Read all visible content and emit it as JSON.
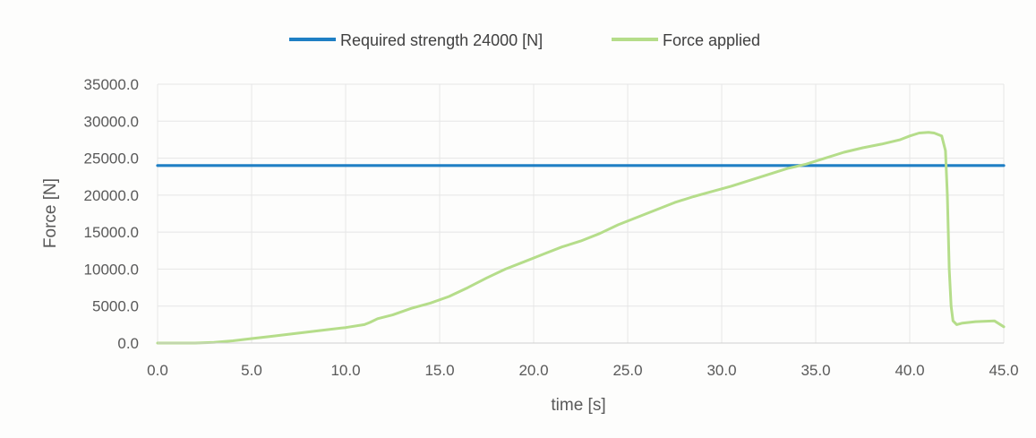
{
  "chart_data": {
    "type": "line",
    "title": "",
    "xlabel": "time [s]",
    "ylabel": "Force [N]",
    "xlim": [
      0,
      45
    ],
    "ylim": [
      0,
      35000
    ],
    "xticks": [
      "0.0",
      "5.0",
      "10.0",
      "15.0",
      "20.0",
      "25.0",
      "30.0",
      "35.0",
      "40.0",
      "45.0"
    ],
    "yticks": [
      "0.0",
      "5000.0",
      "10000.0",
      "15000.0",
      "20000.0",
      "25000.0",
      "30000.0",
      "35000.0"
    ],
    "grid": true,
    "legend_position": "top-center",
    "series": [
      {
        "name": "Required strength 24000 [N]",
        "color": "#1f7fc4",
        "x": [
          0,
          45
        ],
        "y": [
          24000,
          24000
        ]
      },
      {
        "name": "Force applied",
        "color": "#b5dd8a",
        "x": [
          0,
          2,
          3,
          4,
          5,
          6,
          7,
          8,
          9,
          10,
          11,
          11.3,
          11.7,
          12.5,
          13.5,
          14.5,
          15.5,
          16.5,
          17.5,
          18.5,
          19.5,
          20.5,
          21.5,
          22.5,
          23.5,
          24.5,
          25.5,
          26.5,
          27.5,
          28.5,
          29.5,
          30.5,
          31.5,
          32.5,
          33.5,
          34.5,
          35.5,
          36.5,
          37.5,
          38.5,
          39.5,
          40.0,
          40.5,
          41.0,
          41.3,
          41.7,
          41.9,
          42.0,
          42.1,
          42.2,
          42.3,
          42.5,
          42.8,
          43.5,
          44.5,
          45.0
        ],
        "y": [
          0,
          0,
          100,
          300,
          600,
          900,
          1200,
          1500,
          1800,
          2100,
          2500,
          2800,
          3300,
          3800,
          4700,
          5400,
          6300,
          7500,
          8800,
          10000,
          11000,
          12000,
          13000,
          13800,
          14800,
          16000,
          17000,
          18000,
          19000,
          19800,
          20500,
          21200,
          22000,
          22800,
          23600,
          24200,
          25000,
          25800,
          26400,
          26900,
          27500,
          28000,
          28400,
          28500,
          28400,
          28000,
          26000,
          20000,
          10000,
          5000,
          3000,
          2500,
          2700,
          2900,
          3000,
          2200
        ]
      }
    ]
  }
}
